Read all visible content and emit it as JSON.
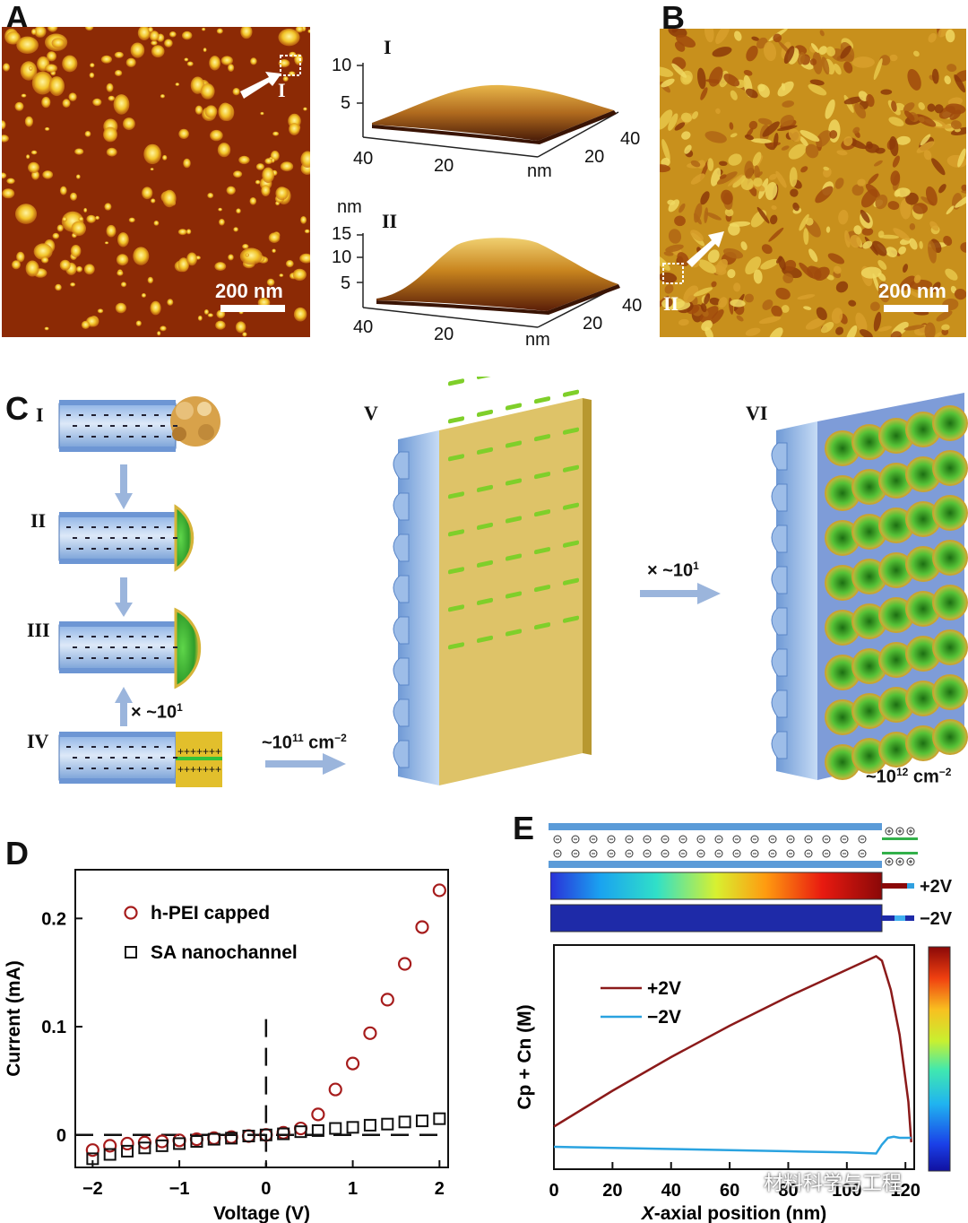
{
  "panels": {
    "A": {
      "label": "A",
      "scale_bar": "200 nm",
      "marker": "I",
      "inset_I": {
        "label": "I",
        "z_ticks": [
          "10",
          "5"
        ],
        "x_ticks": [
          "40",
          "20"
        ],
        "y_ticks": [
          "20",
          "40"
        ],
        "unit": "nm"
      },
      "inset_II": {
        "label": "II",
        "z_unit": "nm",
        "z_ticks": [
          "15",
          "10",
          "5"
        ],
        "x_ticks": [
          "40",
          "20"
        ],
        "y_ticks": [
          "20",
          "40"
        ],
        "unit": "nm"
      }
    },
    "B": {
      "label": "B",
      "scale_bar": "200 nm",
      "marker": "II"
    },
    "C": {
      "label": "C",
      "steps": [
        "I",
        "II",
        "III",
        "IV",
        "V",
        "VI"
      ],
      "mult_IV": "× ~10",
      "mult_IV_sup": "1",
      "density_V": "~10",
      "density_V_sup": "11",
      "density_V_unit": " cm",
      "density_V_unit_sup": "−2",
      "mult_VI": "× ~10",
      "mult_VI_sup": "1",
      "density_VI": "~10",
      "density_VI_sup": "12",
      "density_VI_unit": " cm",
      "density_VI_unit_sup": "−2"
    },
    "D": {
      "label": "D"
    },
    "E": {
      "label": "E",
      "bar_plus": "+2V",
      "bar_minus": "−2V",
      "watermark": "材料科学与工程"
    }
  },
  "chart_data": [
    {
      "type": "scatter",
      "panel": "D",
      "xlabel": "Voltage (V)",
      "ylabel": "Current (mA)",
      "xlim": [
        -2.2,
        2.1
      ],
      "ylim": [
        -0.03,
        0.245
      ],
      "xticks": [
        -2,
        -1,
        0,
        1,
        2
      ],
      "xtick_labels": [
        "−2",
        "−1",
        "0",
        "1",
        "2"
      ],
      "yticks": [
        0,
        0.1,
        0.2
      ],
      "ytick_labels": [
        "0",
        "0.1",
        "0.2"
      ],
      "legend": [
        "h-PEI capped",
        "SA nanochannel"
      ],
      "series": [
        {
          "name": "h-PEI capped",
          "marker": "circle",
          "color": "#a61c1c",
          "x": [
            -2.0,
            -1.8,
            -1.6,
            -1.4,
            -1.2,
            -1.0,
            -0.8,
            -0.6,
            -0.4,
            -0.2,
            0.0,
            0.2,
            0.4,
            0.6,
            0.8,
            1.0,
            1.2,
            1.4,
            1.6,
            1.8,
            2.0
          ],
          "y": [
            -0.014,
            -0.01,
            -0.008,
            -0.007,
            -0.006,
            -0.005,
            -0.004,
            -0.003,
            -0.002,
            -0.001,
            0.0,
            0.002,
            0.006,
            0.019,
            0.042,
            0.066,
            0.094,
            0.125,
            0.158,
            0.192,
            0.226
          ]
        },
        {
          "name": "SA nanochannel",
          "marker": "square",
          "color": "#111111",
          "x": [
            -2.0,
            -1.8,
            -1.6,
            -1.4,
            -1.2,
            -1.0,
            -0.8,
            -0.6,
            -0.4,
            -0.2,
            0.0,
            0.2,
            0.4,
            0.6,
            0.8,
            1.0,
            1.2,
            1.4,
            1.6,
            1.8,
            2.0
          ],
          "y": [
            -0.022,
            -0.018,
            -0.015,
            -0.012,
            -0.01,
            -0.008,
            -0.006,
            -0.004,
            -0.003,
            -0.001,
            0.0,
            0.001,
            0.003,
            0.004,
            0.006,
            0.007,
            0.009,
            0.01,
            0.012,
            0.013,
            0.015
          ]
        }
      ]
    },
    {
      "type": "line",
      "panel": "E",
      "xlabel": "X-axial position (nm)",
      "xlabel_italic_part": "X",
      "xlabel_rest": "-axial position (nm)",
      "ylabel": "Cp + Cn (M)",
      "xlim": [
        0,
        123
      ],
      "ylim": [
        0,
        1
      ],
      "xticks": [
        0,
        20,
        40,
        60,
        80,
        100,
        120
      ],
      "xtick_labels": [
        "0",
        "20",
        "40",
        "60",
        "80",
        "100",
        "120"
      ],
      "legend": [
        "+2V",
        "−2V"
      ],
      "series": [
        {
          "name": "+2V",
          "color": "#8b1a1a",
          "x": [
            0,
            20,
            40,
            60,
            80,
            100,
            110,
            112,
            115,
            118,
            121,
            122
          ],
          "y": [
            0.19,
            0.35,
            0.5,
            0.64,
            0.77,
            0.89,
            0.95,
            0.93,
            0.8,
            0.6,
            0.3,
            0.12
          ]
        },
        {
          "name": "−2V",
          "color": "#2aa3e0",
          "x": [
            0,
            20,
            40,
            60,
            80,
            100,
            110,
            112,
            114,
            116,
            118,
            122
          ],
          "y": [
            0.1,
            0.095,
            0.09,
            0.085,
            0.08,
            0.075,
            0.07,
            0.11,
            0.14,
            0.145,
            0.14,
            0.14
          ]
        }
      ]
    }
  ]
}
